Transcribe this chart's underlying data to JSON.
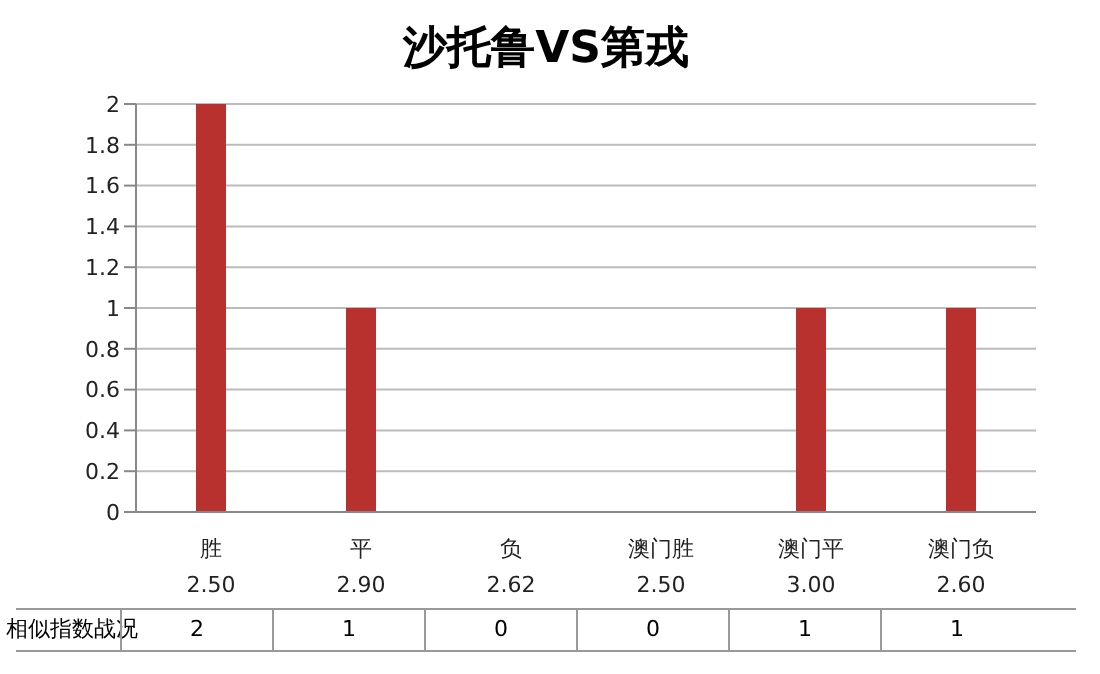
{
  "chart_data": {
    "type": "bar",
    "title": "沙托鲁VS第戎",
    "categories": [
      "胜\n2.50",
      "平\n2.90",
      "负\n2.62",
      "澳门胜\n2.50",
      "澳门平\n3.00",
      "澳门负\n2.60"
    ],
    "series": [
      {
        "name": "相似指数战况",
        "color": "#b8312f",
        "values": [
          2,
          1,
          0,
          0,
          1,
          1
        ]
      }
    ],
    "ylim": [
      0,
      2
    ],
    "yticks": [
      0,
      0.2,
      0.4,
      0.6,
      0.8,
      1,
      1.2,
      1.4,
      1.6,
      1.8,
      2
    ],
    "grid": "y",
    "legend": "bottom",
    "data_labels": true
  }
}
